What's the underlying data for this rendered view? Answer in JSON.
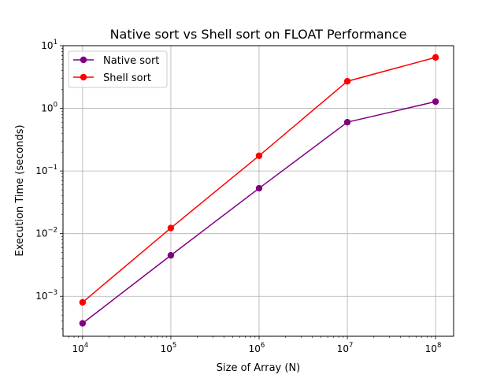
{
  "chart_data": {
    "type": "line",
    "title": "Native sort vs Shell sort on FLOAT Performance",
    "xlabel": "Size of Array (N)",
    "ylabel": "Execution Time (seconds)",
    "xscale": "log",
    "yscale": "log",
    "x": [
      10000,
      100000,
      1000000,
      10000000,
      100000000
    ],
    "series": [
      {
        "name": "Native sort",
        "color": "#800080",
        "values": [
          0.00037,
          0.0045,
          0.053,
          0.6,
          1.28
        ]
      },
      {
        "name": "Shell sort",
        "color": "#ff0000",
        "values": [
          0.0008,
          0.0123,
          0.175,
          2.7,
          6.5
        ]
      }
    ],
    "xlim": [
      6000,
      160000000
    ],
    "ylim": [
      0.00023,
      10
    ],
    "xticks": [
      {
        "value": 10000,
        "base": "10",
        "exp": "4"
      },
      {
        "value": 100000,
        "base": "10",
        "exp": "5"
      },
      {
        "value": 1000000,
        "base": "10",
        "exp": "6"
      },
      {
        "value": 10000000,
        "base": "10",
        "exp": "7"
      },
      {
        "value": 100000000,
        "base": "10",
        "exp": "8"
      }
    ],
    "yticks": [
      {
        "value": 0.001,
        "base": "10",
        "exp": "−3"
      },
      {
        "value": 0.01,
        "base": "10",
        "exp": "−2"
      },
      {
        "value": 0.1,
        "base": "10",
        "exp": "−1"
      },
      {
        "value": 1,
        "base": "10",
        "exp": "0"
      },
      {
        "value": 10,
        "base": "10",
        "exp": "1"
      }
    ],
    "grid": true,
    "legend_position": "top-left"
  }
}
